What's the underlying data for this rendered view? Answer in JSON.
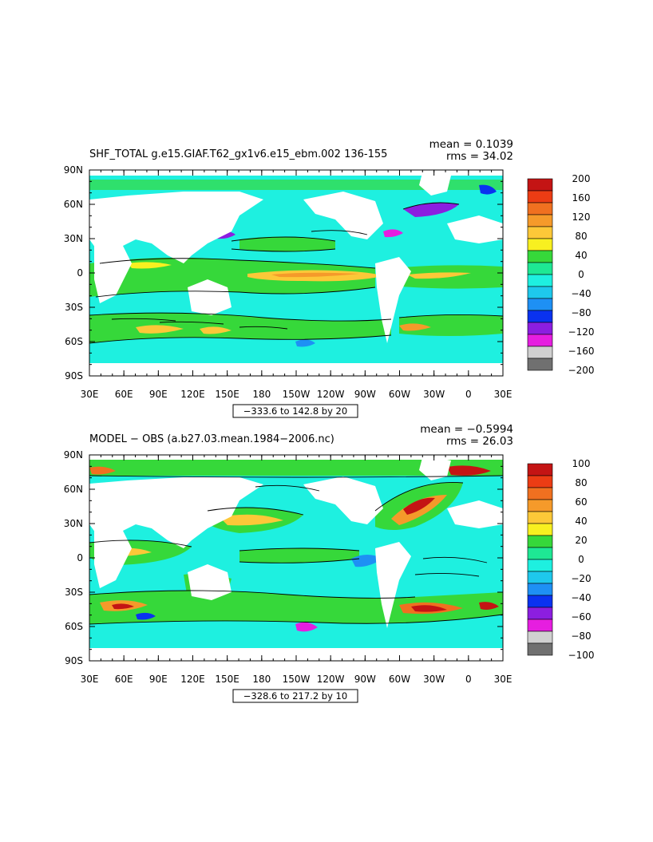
{
  "panels": [
    {
      "title": "SHF_TOTAL g.e15.GIAF.T62_gx1v6.e15_ebm.002  136-155",
      "mean": "mean = 0.1039",
      "rms": "rms = 34.02",
      "range": "−333.6 to 142.8 by 20",
      "lat_labels": [
        "90N",
        "60N",
        "30N",
        "0",
        "30S",
        "60S",
        "90S"
      ],
      "lon_labels": [
        "30E",
        "60E",
        "90E",
        "120E",
        "150E",
        "180",
        "150W",
        "120W",
        "90W",
        "60W",
        "30W",
        "0",
        "30E"
      ],
      "colorbar": {
        "labels": [
          "200",
          "160",
          "120",
          "80",
          "40",
          "0",
          "−40",
          "−80",
          "−120",
          "−160",
          "−200"
        ],
        "colors": [
          "#c41414",
          "#ec3c14",
          "#f07020",
          "#f59a2a",
          "#fcc838",
          "#f8f020",
          "#36d83a",
          "#1ee894",
          "#1ef0e0",
          "#1ec8ec",
          "#1e90f4",
          "#0a32f0",
          "#8c1ee0",
          "#e61ee0",
          "#d0d0d0",
          "#707070"
        ]
      }
    },
    {
      "title": "MODEL − OBS (a.b27.03.mean.1984−2006.nc)",
      "mean": "mean = −0.5994",
      "rms": "rms = 26.03",
      "range": "−328.6 to 217.2 by 10",
      "lat_labels": [
        "90N",
        "60N",
        "30N",
        "0",
        "30S",
        "60S",
        "90S"
      ],
      "lon_labels": [
        "30E",
        "60E",
        "90E",
        "120E",
        "150E",
        "180",
        "150W",
        "120W",
        "90W",
        "60W",
        "30W",
        "0",
        "30E"
      ],
      "colorbar": {
        "labels": [
          "100",
          "80",
          "60",
          "40",
          "20",
          "0",
          "−20",
          "−40",
          "−60",
          "−80",
          "−100"
        ],
        "colors": [
          "#c41414",
          "#ec3c14",
          "#f07020",
          "#f59a2a",
          "#fcc838",
          "#f8f020",
          "#36d83a",
          "#1ee894",
          "#1ef0e0",
          "#1ec8ec",
          "#1e90f4",
          "#0a32f0",
          "#8c1ee0",
          "#e61ee0",
          "#d0d0d0",
          "#707070"
        ]
      }
    }
  ]
}
